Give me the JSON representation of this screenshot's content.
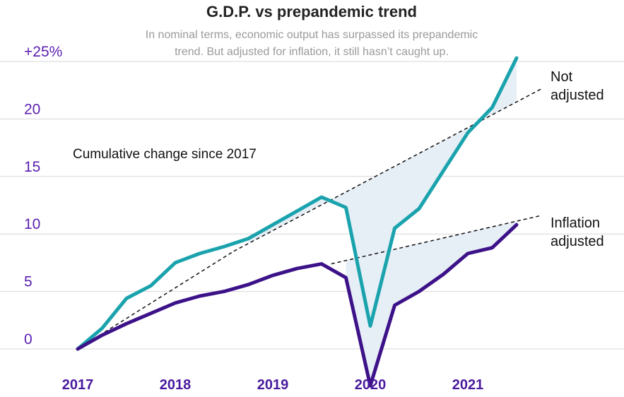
{
  "chart_data": {
    "type": "line",
    "title": "G.D.P. vs prepandemic trend",
    "subtitle_lines": [
      "In nominal terms, economic output has surpassed its prepandemic",
      "trend. But adjusted for inflation, it still hasn’t caught up."
    ],
    "annotation": "Cumulative change since 2017",
    "xlabel": "",
    "ylabel": "Cumulative change since 2017",
    "ylim": [
      -4,
      27
    ],
    "y_ticks": [
      {
        "value": 25,
        "label": "+25%"
      },
      {
        "value": 20,
        "label": "20"
      },
      {
        "value": 15,
        "label": "15"
      },
      {
        "value": 10,
        "label": "10"
      },
      {
        "value": 5,
        "label": "5"
      },
      {
        "value": 0,
        "label": "0"
      }
    ],
    "x_ticks": [
      {
        "value": 2017,
        "label": "2017"
      },
      {
        "value": 2018,
        "label": "2018"
      },
      {
        "value": 2019,
        "label": "2019"
      },
      {
        "value": 2020,
        "label": "2020"
      },
      {
        "value": 2021,
        "label": "2021"
      }
    ],
    "series": [
      {
        "name": "Not adjusted",
        "label_lines": [
          "Not",
          "adjusted"
        ],
        "color": "#1aa3ad",
        "x": [
          2017.0,
          2017.25,
          2017.5,
          2017.75,
          2018.0,
          2018.25,
          2018.5,
          2018.75,
          2019.0,
          2019.25,
          2019.5,
          2019.75,
          2020.0,
          2020.25,
          2020.5,
          2020.75,
          2021.0,
          2021.25,
          2021.5,
          2021.75
        ],
        "values": [
          0.0,
          1.8,
          4.4,
          5.5,
          7.5,
          8.3,
          8.9,
          9.6,
          10.8,
          12.0,
          13.2,
          12.3,
          2.0,
          10.5,
          12.2,
          15.5,
          18.8,
          21.0,
          25.3,
          null
        ],
        "trend": {
          "x": [
            2018.6,
            2021.75
          ],
          "values": [
            8.5,
            22.6
          ]
        }
      },
      {
        "name": "Inflation adjusted",
        "label_lines": [
          "Inflation",
          "adjusted"
        ],
        "color": "#3d1289",
        "x": [
          2017.0,
          2017.25,
          2017.5,
          2017.75,
          2018.0,
          2018.25,
          2018.5,
          2018.75,
          2019.0,
          2019.25,
          2019.5,
          2019.75,
          2020.0,
          2020.25,
          2020.5,
          2020.75,
          2021.0,
          2021.25,
          2021.5,
          2021.75
        ],
        "values": [
          0.0,
          1.2,
          2.2,
          3.1,
          4.0,
          4.6,
          5.0,
          5.6,
          6.4,
          7.0,
          7.4,
          6.2,
          -3.2,
          3.8,
          5.0,
          6.5,
          8.3,
          8.8,
          10.8,
          null
        ],
        "trend": {
          "x": [
            2019.6,
            2021.75
          ],
          "values": [
            7.4,
            11.6
          ]
        }
      }
    ],
    "start_trend": {
      "x": [
        2017.0,
        2018.6
      ],
      "values": [
        0.0,
        8.5
      ]
    },
    "colors": {
      "nominal": "#1aa3ad",
      "real": "#3d1289",
      "trend": "#111111",
      "gap_fill": "#e6eef6",
      "grid": "#d7d7d7",
      "tick_text": "#5b1fb0"
    }
  }
}
